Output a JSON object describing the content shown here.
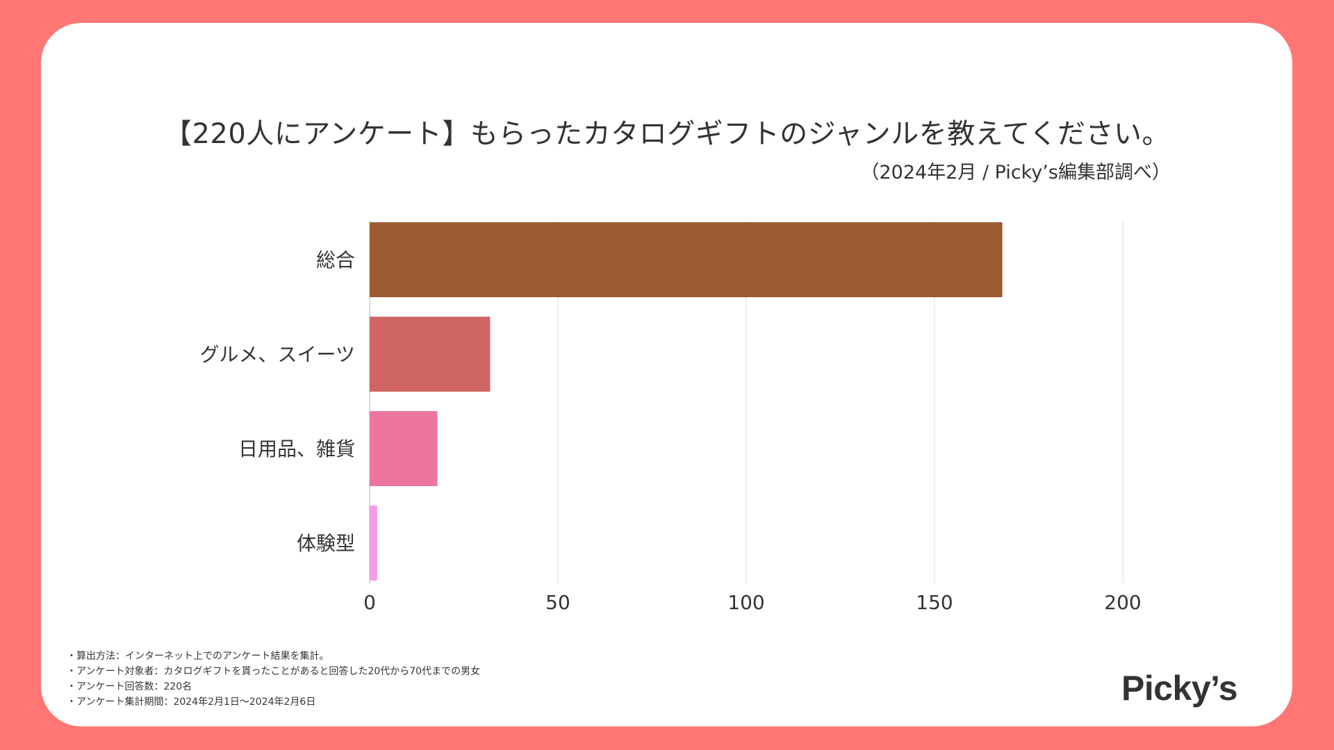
{
  "title": "【220人にアンケート】もらったカタログギフトのジャンルを教えてください。",
  "subtitle": "（2024年2月 / Picky’s編集部調べ）",
  "chart_data": {
    "type": "bar",
    "orientation": "horizontal",
    "categories": [
      "総合",
      "グルメ、スイーツ",
      "日用品、雑貨",
      "体験型"
    ],
    "values": [
      168,
      32,
      18,
      2
    ],
    "colors": [
      "#9C5C33",
      "#CF6664",
      "#EC769D",
      "#F79BE4"
    ],
    "xlim": [
      0,
      200
    ],
    "xticks": [
      0,
      50,
      100,
      150,
      200
    ],
    "xlabel": "",
    "ylabel": "",
    "grid": "vertical"
  },
  "footnotes": [
    "・算出方法：インターネット上でのアンケート結果を集計。",
    "・アンケート対象者：カタログギフトを貰ったことがあると回答した20代から70代までの男女",
    "・アンケート回答数：220名",
    "・アンケート集計期間：2024年2月1日〜2024年2月6日"
  ],
  "logo": "Picky’s",
  "colors": {
    "frame": "#FF7674",
    "card": "#ffffff",
    "text": "#333333",
    "grid": "#e2e2e2"
  }
}
